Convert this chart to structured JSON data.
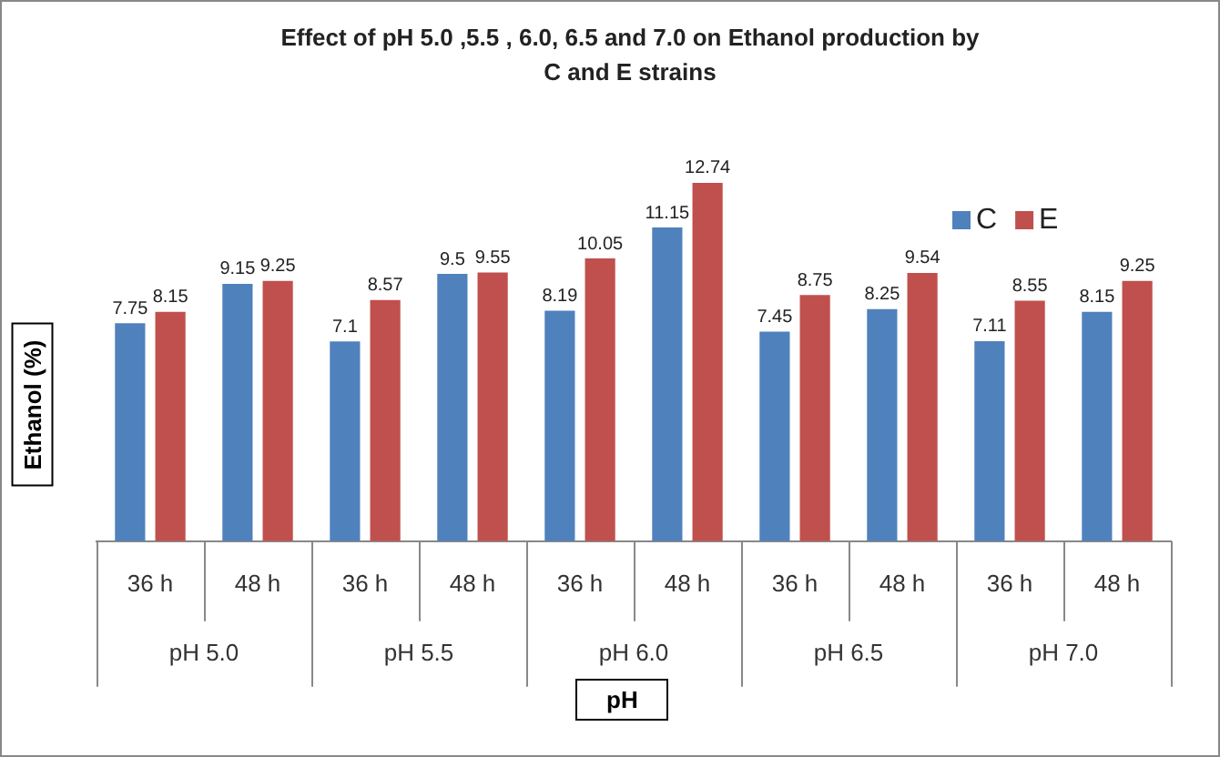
{
  "chart_data": {
    "type": "bar",
    "title": "Effect of pH  5.0 ,5.5 , 6.0, 6.5 and 7.0 on Ethanol production by C and E strains",
    "xlabel": "pH",
    "ylabel": "Ethanol (%)",
    "categories": [
      "36 h",
      "48 h",
      "36 h",
      "48 h",
      "36 h",
      "48 h",
      "36 h",
      "48 h",
      "36 h",
      "48 h"
    ],
    "annotations": [
      "pH 5.0",
      "pH 5.5",
      "pH 6.0",
      "pH 6.5",
      "pH 7.0"
    ],
    "series": [
      {
        "name": "C",
        "color": "#4f81bd",
        "values": [
          7.75,
          9.15,
          7.1,
          9.5,
          8.19,
          11.15,
          7.45,
          8.25,
          7.11,
          8.15
        ]
      },
      {
        "name": "E",
        "color": "#c0504d",
        "values": [
          8.15,
          9.25,
          8.57,
          9.55,
          10.05,
          12.74,
          8.75,
          9.54,
          8.55,
          9.25
        ]
      }
    ],
    "data_labels": true,
    "legend": "top right",
    "tick_labels": "x"
  }
}
